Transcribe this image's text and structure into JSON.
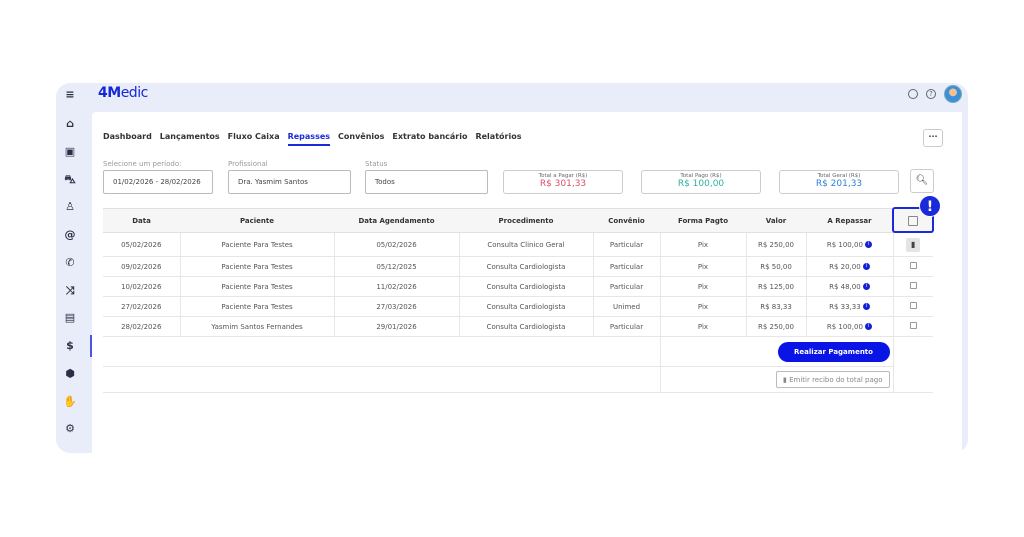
{
  "app": {
    "logo": "4Medic"
  },
  "sidebar": {
    "items": [
      {
        "icon": "menu-icon",
        "glyph": "≡"
      },
      {
        "icon": "home-icon",
        "glyph": "⌂"
      },
      {
        "icon": "calendar-icon",
        "glyph": "▣"
      },
      {
        "icon": "car-icon",
        "glyph": "⛍"
      },
      {
        "icon": "user-icon",
        "glyph": "♙"
      },
      {
        "icon": "at-icon",
        "glyph": "@"
      },
      {
        "icon": "phone-icon",
        "glyph": "✆"
      },
      {
        "icon": "shuffle-icon",
        "glyph": "⤨"
      },
      {
        "icon": "clipboard-icon",
        "glyph": "▤"
      },
      {
        "icon": "dollar-icon",
        "glyph": "$",
        "active": true
      },
      {
        "icon": "box-icon",
        "glyph": "⬢"
      },
      {
        "icon": "hand-icon",
        "glyph": "✋"
      },
      {
        "icon": "gear-icon",
        "glyph": "⚙"
      }
    ]
  },
  "tabs": [
    "Dashboard",
    "Lançamentos",
    "Fluxo Caixa",
    "Repasses",
    "Convênios",
    "Extrato bancário",
    "Relatórios"
  ],
  "active_tab": "Repasses",
  "filters": {
    "period": {
      "label": "Selecione um período:",
      "value": "01/02/2026 - 28/02/2026"
    },
    "professional": {
      "label": "Profissional",
      "value": "Dra. Yasmim Santos"
    },
    "status": {
      "label": "Status",
      "value": "Todos"
    }
  },
  "totals": [
    {
      "label": "Total a Pagar (R$)",
      "value": "R$ 301,33",
      "color": "#d9506a"
    },
    {
      "label": "Total Pago (R$)",
      "value": "R$ 100,00",
      "color": "#2bb3a0"
    },
    {
      "label": "Total Geral (R$)",
      "value": "R$ 201,33",
      "color": "#2f7fd6"
    }
  ],
  "more_label": "···",
  "table": {
    "headers": [
      "Data",
      "Paciente",
      "Data Agendamento",
      "Procedimento",
      "Convênio",
      "Forma Pagto",
      "Valor",
      "A Repassar"
    ],
    "rows": [
      [
        "05/02/2026",
        "Paciente Para Testes",
        "05/02/2026",
        "Consulta Clinico Geral",
        "Particular",
        "Pix",
        "R$ 250,00",
        "R$ 100,00"
      ],
      [
        "09/02/2026",
        "Paciente Para Testes",
        "05/12/2025",
        "Consulta Cardiologista",
        "Particular",
        "Pix",
        "R$ 50,00",
        "R$ 20,00"
      ],
      [
        "10/02/2026",
        "Paciente Para Testes",
        "11/02/2026",
        "Consulta Cardiologista",
        "Particular",
        "Pix",
        "R$ 125,00",
        "R$ 48,00"
      ],
      [
        "27/02/2026",
        "Paciente Para Testes",
        "27/03/2026",
        "Consulta Cardiologista",
        "Unimed",
        "Pix",
        "R$ 83,33",
        "R$ 33,33"
      ],
      [
        "28/02/2026",
        "Yasmim Santos Fernandes",
        "29/01/2026",
        "Consulta Cardiologista",
        "Particular",
        "Pix",
        "R$ 250,00",
        "R$ 100,00"
      ]
    ]
  },
  "actions": {
    "pay": "Realizar Pagamento",
    "receipt": "Emitir recibo do total pago"
  },
  "alert_glyph": "!"
}
